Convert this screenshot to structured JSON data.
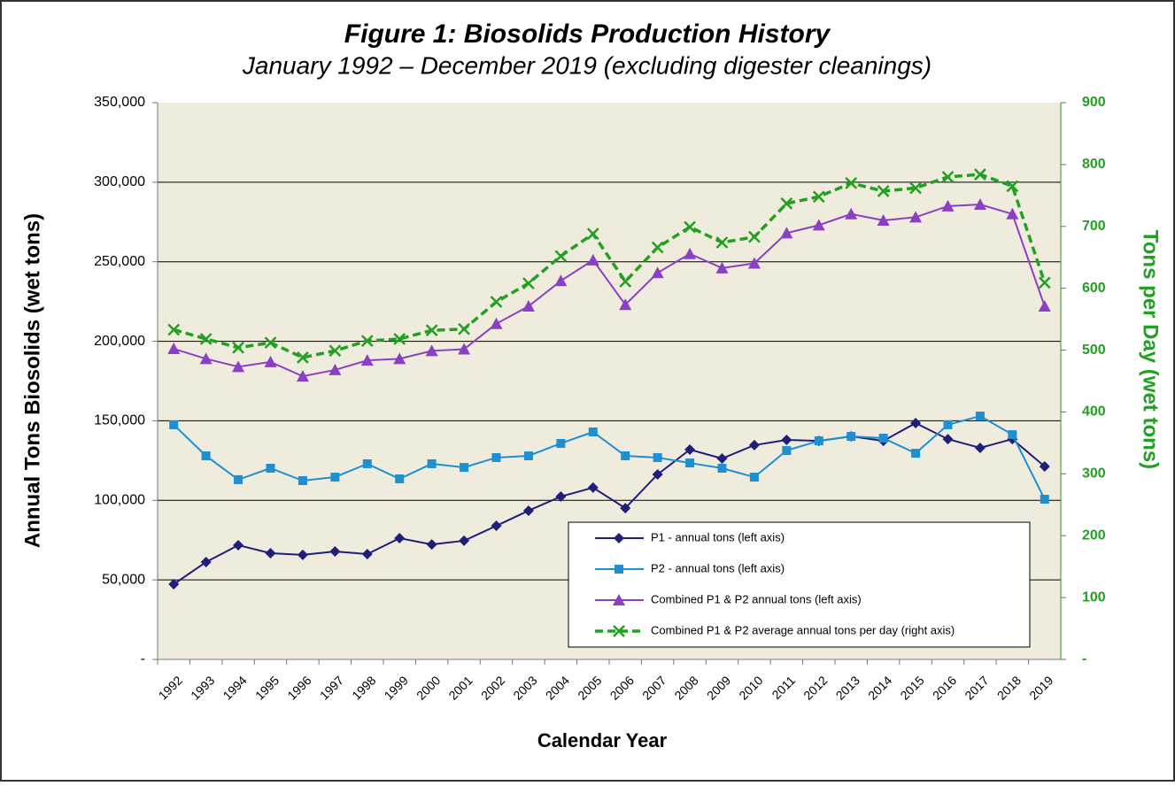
{
  "chart_data": {
    "type": "line",
    "title": "Figure 1:  Biosolids Production History",
    "subtitle": "January 1992 – December 2019 (excluding digester cleanings)",
    "xlabel": "Calendar Year",
    "ylabel": "Annual Tons Biosolids (wet tons)",
    "y2label": "Tons per Day (wet tons)",
    "categories": [
      "1992",
      "1993",
      "1994",
      "1995",
      "1996",
      "1997",
      "1998",
      "1999",
      "2000",
      "2001",
      "2002",
      "2003",
      "2004",
      "2005",
      "2006",
      "2007",
      "2008",
      "2009",
      "2010",
      "2011",
      "2012",
      "2013",
      "2014",
      "2015",
      "2016",
      "2017",
      "2018",
      "2019"
    ],
    "ylim": [
      0,
      350000
    ],
    "yticks": [
      {
        "value": 0,
        "label": "-"
      },
      {
        "value": 50000,
        "label": "50,000"
      },
      {
        "value": 100000,
        "label": "100,000"
      },
      {
        "value": 150000,
        "label": "150,000"
      },
      {
        "value": 200000,
        "label": "200,000"
      },
      {
        "value": 250000,
        "label": "250,000"
      },
      {
        "value": 300000,
        "label": "300,000"
      },
      {
        "value": 350000,
        "label": "350,000"
      }
    ],
    "y2lim": [
      0,
      900
    ],
    "y2ticks": [
      {
        "value": 0,
        "label": "-"
      },
      100,
      200,
      300,
      400,
      500,
      600,
      700,
      800,
      900
    ],
    "grid": true,
    "legend": "lower right",
    "series": [
      {
        "name": "P1 - annual tons (left axis)",
        "color": "#1f1f7a",
        "marker": "diamond",
        "values": [
          47300,
          61200,
          71800,
          66800,
          65700,
          67900,
          66200,
          76200,
          72300,
          74600,
          84000,
          93500,
          102400,
          108000,
          95100,
          116300,
          131900,
          126300,
          134700,
          138000,
          137400,
          140200,
          137400,
          148600,
          138500,
          133000,
          138500,
          121300
        ]
      },
      {
        "name": "P2 - annual tons (left axis)",
        "color": "#1e8fd0",
        "marker": "square",
        "values": [
          147500,
          128000,
          113000,
          120200,
          112400,
          114600,
          123000,
          113500,
          123000,
          120700,
          126900,
          128000,
          135800,
          143000,
          128000,
          126900,
          123500,
          120200,
          114600,
          131300,
          137400,
          140200,
          139100,
          129600,
          147500,
          153000,
          141300,
          100700
        ]
      },
      {
        "name": "Combined P1 & P2 annual tons (left axis)",
        "color": "#8b3fc4",
        "marker": "triangle",
        "values": [
          195300,
          189000,
          184000,
          187000,
          178000,
          182000,
          188000,
          189000,
          194000,
          195000,
          211000,
          222000,
          238000,
          251000,
          223000,
          243000,
          255000,
          246000,
          249000,
          268000,
          273000,
          280000,
          276000,
          278000,
          285000,
          286000,
          280000,
          222000
        ]
      },
      {
        "name": "Combined P1 & P2 average annual tons per day (right axis)",
        "color": "#22a022",
        "marker": "x",
        "dashed": true,
        "axis": "y2",
        "values": [
          533,
          518,
          504,
          512,
          488,
          499,
          515,
          518,
          532,
          534,
          578,
          608,
          652,
          688,
          611,
          666,
          699,
          674,
          683,
          737,
          748,
          770,
          757,
          762,
          780,
          784,
          765,
          609
        ]
      }
    ]
  }
}
